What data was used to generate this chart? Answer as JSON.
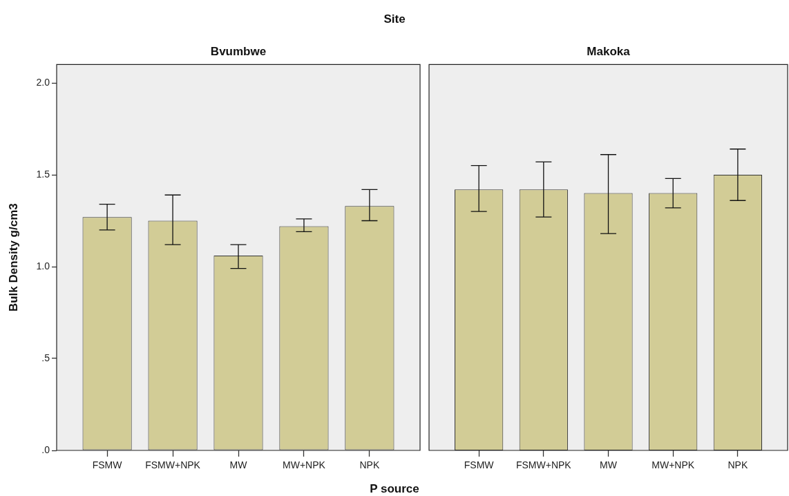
{
  "chart_data": [
    {
      "type": "bar",
      "title": "Bvumbwe",
      "annotations": [
        "Site"
      ],
      "xlabel": "P source",
      "ylabel": "Bulk Density g/cm3",
      "categories": [
        "FSMW",
        "FSMW+NPK",
        "MW",
        "MW+NPK",
        "NPK"
      ],
      "values": [
        1.27,
        1.25,
        1.06,
        1.22,
        1.33
      ],
      "errors": [
        [
          1.2,
          1.34
        ],
        [
          1.12,
          1.39
        ],
        [
          0.99,
          1.12
        ],
        [
          1.19,
          1.26
        ],
        [
          1.25,
          1.42
        ]
      ],
      "color": "#d2cc96",
      "ylim": [
        0,
        2.1
      ],
      "yticks": [
        {
          "value": 0,
          "label": ".0"
        },
        {
          "value": 0.5,
          "label": ".5"
        },
        {
          "value": 1,
          "label": "1.0"
        },
        {
          "value": 1.5,
          "label": "1.5"
        },
        {
          "value": 2,
          "label": "2.0"
        }
      ]
    },
    {
      "type": "bar",
      "title": "Makoka",
      "categories": [
        "FSMW",
        "FSMW+NPK",
        "MW",
        "MW+NPK",
        "NPK"
      ],
      "values": [
        1.42,
        1.42,
        1.4,
        1.4,
        1.5
      ],
      "errors": [
        [
          1.3,
          1.55
        ],
        [
          1.27,
          1.57
        ],
        [
          1.18,
          1.61
        ],
        [
          1.32,
          1.48
        ],
        [
          1.36,
          1.64
        ]
      ],
      "color": "#d2cc96",
      "ylim": [
        0,
        2.1
      ],
      "tick_labels": "x"
    }
  ]
}
